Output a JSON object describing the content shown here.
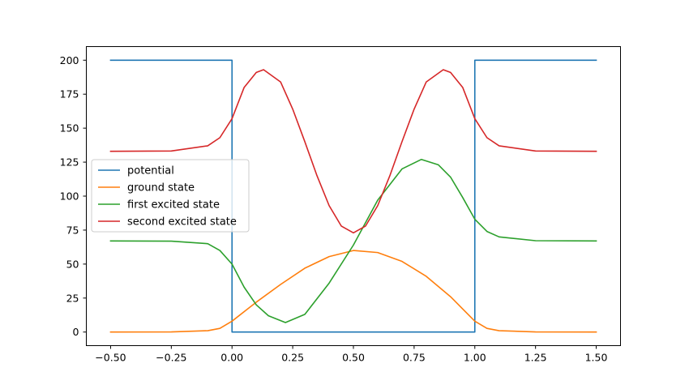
{
  "chart_data": {
    "type": "line",
    "title": "",
    "xlabel": "",
    "ylabel": "",
    "xlim": [
      -0.6,
      1.6
    ],
    "ylim": [
      -10,
      210
    ],
    "xticks": [
      -0.5,
      -0.25,
      0.0,
      0.25,
      0.5,
      0.75,
      1.0,
      1.25,
      1.5
    ],
    "xtick_labels": [
      "−0.50",
      "−0.25",
      "0.00",
      "0.25",
      "0.50",
      "0.75",
      "1.00",
      "1.25",
      "1.50"
    ],
    "yticks": [
      0,
      25,
      50,
      75,
      100,
      125,
      150,
      175,
      200
    ],
    "ytick_labels": [
      "0",
      "25",
      "50",
      "75",
      "100",
      "125",
      "150",
      "175",
      "200"
    ],
    "grid": false,
    "legend_position": "center-left",
    "series": [
      {
        "name": "potential",
        "color": "#1f77b4",
        "x": [
          -0.5,
          0.0,
          0.0,
          1.0,
          1.0,
          1.5
        ],
        "y": [
          200,
          200,
          0,
          0,
          200,
          200
        ]
      },
      {
        "name": "ground state",
        "color": "#ff7f0e",
        "x": [
          -0.5,
          -0.25,
          -0.1,
          -0.05,
          0.0,
          0.1,
          0.2,
          0.3,
          0.4,
          0.5,
          0.6,
          0.7,
          0.8,
          0.9,
          1.0,
          1.05,
          1.1,
          1.25,
          1.5
        ],
        "y": [
          0,
          0.1,
          1.0,
          2.7,
          8.0,
          22.0,
          35.0,
          47.0,
          55.5,
          60.0,
          58.5,
          52.0,
          41.0,
          26.0,
          8.0,
          2.7,
          1.0,
          0.1,
          0
        ]
      },
      {
        "name": "first excited state",
        "color": "#2ca02c",
        "x": [
          -0.5,
          -0.25,
          -0.1,
          -0.05,
          0.0,
          0.05,
          0.1,
          0.15,
          0.22,
          0.3,
          0.4,
          0.5,
          0.6,
          0.7,
          0.78,
          0.85,
          0.9,
          0.95,
          1.0,
          1.05,
          1.1,
          1.25,
          1.5
        ],
        "y": [
          67,
          66.9,
          65.0,
          60.0,
          50.0,
          33.0,
          20.0,
          12.0,
          7.0,
          13.0,
          36.0,
          64.0,
          97.0,
          120.0,
          127.0,
          123.0,
          114.0,
          99.0,
          83.0,
          74.0,
          70.0,
          67.2,
          67
        ]
      },
      {
        "name": "second excited state",
        "color": "#d62728",
        "x": [
          -0.5,
          -0.25,
          -0.1,
          -0.05,
          0.0,
          0.05,
          0.1,
          0.13,
          0.2,
          0.25,
          0.3,
          0.35,
          0.4,
          0.45,
          0.5,
          0.55,
          0.6,
          0.65,
          0.7,
          0.75,
          0.8,
          0.87,
          0.9,
          0.95,
          1.0,
          1.05,
          1.1,
          1.25,
          1.5
        ],
        "y": [
          133,
          133.2,
          137.0,
          143.0,
          157.0,
          180.0,
          191.0,
          193.0,
          184.0,
          164.0,
          140.0,
          115.0,
          93.0,
          78.0,
          73.0,
          78.0,
          93.0,
          115.0,
          140.0,
          164.0,
          184.0,
          193.0,
          191.0,
          180.0,
          157.0,
          143.0,
          137.0,
          133.2,
          133
        ]
      }
    ]
  }
}
